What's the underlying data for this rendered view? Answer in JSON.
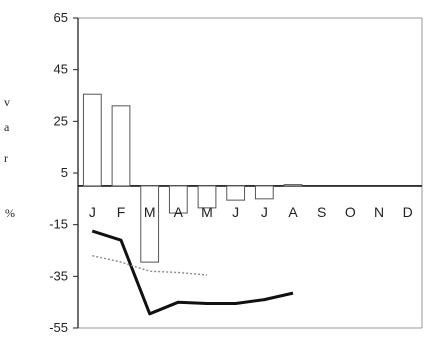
{
  "chart_data": {
    "type": "bar",
    "categories": [
      "J",
      "F",
      "M",
      "A",
      "M",
      "J",
      "J",
      "A",
      "S",
      "O",
      "N",
      "D"
    ],
    "ylabel_letters": [
      "v",
      "a",
      "r",
      "%"
    ],
    "yticks": [
      "65",
      "45",
      "25",
      "5",
      "-15",
      "-35",
      "-55"
    ],
    "ylim": [
      -55,
      65
    ],
    "grid": false,
    "bar_color": "#ffffff",
    "bar_stroke": "#555555",
    "series": [
      {
        "type": "bar",
        "values": [
          35.5,
          31,
          -29.5,
          -10.5,
          -8.5,
          -5.5,
          -5,
          0.5,
          null,
          null,
          null,
          null
        ]
      },
      {
        "type": "line",
        "style": "solid-thick",
        "color": "#111111",
        "values": [
          -17.5,
          -21,
          -49.5,
          -45,
          -45.5,
          -45.5,
          -44,
          -41.5,
          null,
          null,
          null,
          null
        ]
      },
      {
        "type": "line",
        "style": "dotted",
        "color": "#888888",
        "values": [
          -27,
          -29.5,
          -33,
          -33.5,
          -34.5,
          null,
          null,
          null,
          null,
          null,
          null,
          null
        ]
      }
    ]
  }
}
